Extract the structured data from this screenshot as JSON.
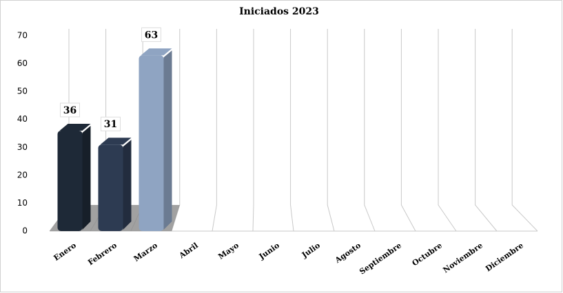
{
  "chart_data": {
    "type": "bar3d",
    "title": "Iniciados 2023",
    "categories": [
      "Enero",
      "Febrero",
      "Marzo",
      "Abril",
      "Mayo",
      "Junio",
      "Julio",
      "Agosto",
      "Septiembre",
      "Octubre",
      "Noviembre",
      "Diciembre"
    ],
    "values": [
      36,
      31,
      63,
      null,
      null,
      null,
      null,
      null,
      null,
      null,
      null,
      null
    ],
    "colors": [
      "#1e2937",
      "#2d3b52",
      "#8fa4c2"
    ],
    "ylim": [
      0,
      70
    ],
    "yticks": [
      0,
      10,
      20,
      30,
      40,
      50,
      60,
      70
    ]
  }
}
